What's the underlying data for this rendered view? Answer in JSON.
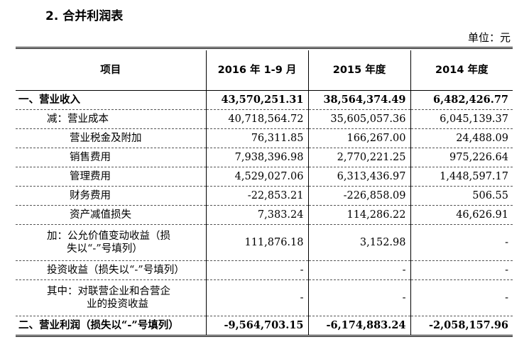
{
  "section_title": "2. 合并利润表",
  "unit_label": "单位：元",
  "table": {
    "headers": [
      "项目",
      "2016 年 1-9 月",
      "2015 年度",
      "2014 年度"
    ],
    "rows": [
      {
        "item": "一、营业收入",
        "v2016": "43,570,251.31",
        "v2015": "38,564,374.49",
        "v2014": "6,482,426.77"
      },
      {
        "item": "减：营业成本",
        "v2016": "40,718,564.72",
        "v2015": "35,605,057.36",
        "v2014": "6,045,139.37"
      },
      {
        "item": "营业税金及附加",
        "v2016": "76,311.85",
        "v2015": "166,267.00",
        "v2014": "24,488.09"
      },
      {
        "item": "销售费用",
        "v2016": "7,938,396.98",
        "v2015": "2,770,221.25",
        "v2014": "975,226.64"
      },
      {
        "item": "管理费用",
        "v2016": "4,529,027.06",
        "v2015": "6,313,436.97",
        "v2014": "1,448,597.17"
      },
      {
        "item": "财务费用",
        "v2016": "-22,853.21",
        "v2015": "-226,858.09",
        "v2014": "506.55"
      },
      {
        "item": "资产减值损失",
        "v2016": "7,383.24",
        "v2015": "114,286.22",
        "v2014": "46,626.91"
      },
      {
        "item_line1": "加：公允价值变动收益（损",
        "item_line2": "失以“-”号填列）",
        "v2016": "111,876.18",
        "v2015": "3,152.98",
        "v2014": "-"
      },
      {
        "item": "投资收益（损失以“-”号填列）",
        "v2016": "-",
        "v2015": "-",
        "v2014": "-"
      },
      {
        "item_line1": "其中：对联营企业和合营企",
        "item_line2": "业的投资收益",
        "v2016": "-",
        "v2015": "-",
        "v2014": "-"
      },
      {
        "item": "二、营业利润（损失以“-”号填列）",
        "v2016": "-9,564,703.15",
        "v2015": "-6,174,883.24",
        "v2014": "-2,058,157.96"
      }
    ]
  }
}
